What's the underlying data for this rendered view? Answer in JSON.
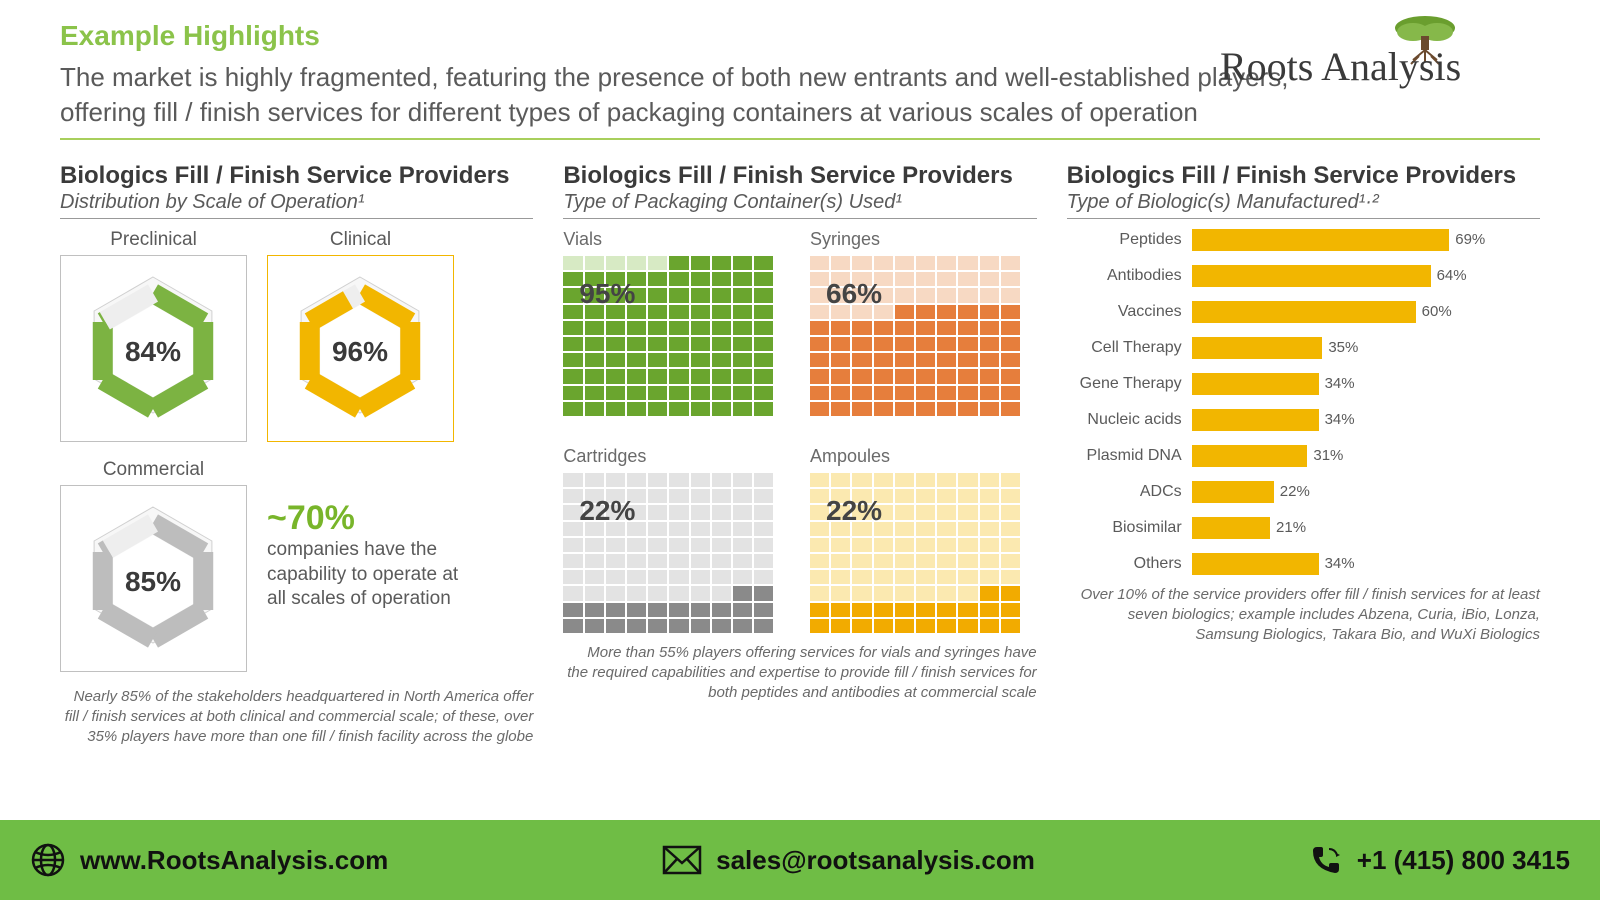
{
  "header": {
    "example_highlights": "Example Highlights",
    "subtitle": "The market is highly fragmented, featuring the presence of both new entrants and well-established players, offering fill / finish services for different types of packaging containers at various scales of operation",
    "logo_text": "Roots Analysis"
  },
  "panel1": {
    "title": "Biologics Fill / Finish Service Providers",
    "subtitle": "Distribution by Scale of Operation¹",
    "hexes": [
      {
        "label": "Preclinical",
        "value": "84%",
        "pct": 84,
        "color": "#7cb342",
        "border": "#c0c0c0"
      },
      {
        "label": "Clinical",
        "value": "96%",
        "pct": 96,
        "color": "#f2b600",
        "border": "#f2b600"
      },
      {
        "label": "Commercial",
        "value": "85%",
        "pct": 85,
        "color": "#bdbdbd",
        "border": "#c0c0c0"
      }
    ],
    "callout_big": "~70%",
    "callout_text": "companies have the capability to operate at all scales of operation",
    "note": "Nearly 85% of the stakeholders headquartered in North America offer fill / finish services at both clinical and commercial scale; of these, over 35% players have more than one fill / finish facility across the globe"
  },
  "panel2": {
    "title": "Biologics Fill / Finish Service Providers",
    "subtitle": "Type of Packaging Container(s) Used¹",
    "waffles": [
      {
        "label": "Vials",
        "pct": 95,
        "value": "95%",
        "dark": "#6aa52e",
        "light": "#d7eac4"
      },
      {
        "label": "Syringes",
        "pct": 66,
        "value": "66%",
        "dark": "#e67e3c",
        "light": "#f7d9c3"
      },
      {
        "label": "Cartridges",
        "pct": 22,
        "value": "22%",
        "dark": "#8a8a8a",
        "light": "#e3e3e3"
      },
      {
        "label": "Ampoules",
        "pct": 22,
        "value": "22%",
        "dark": "#f2ab00",
        "light": "#fbe9b0"
      }
    ],
    "note": "More than 55% players offering services for vials and syringes have the required capabilities and expertise to provide fill / finish services for both peptides and antibodies at commercial scale"
  },
  "panel3": {
    "title": "Biologics Fill / Finish Service Providers",
    "subtitle": "Type of Biologic(s) Manufactured¹·²",
    "bars": [
      {
        "label": "Peptides",
        "pct": 69,
        "value": "69%"
      },
      {
        "label": "Antibodies",
        "pct": 64,
        "value": "64%"
      },
      {
        "label": "Vaccines",
        "pct": 60,
        "value": "60%"
      },
      {
        "label": "Cell Therapy",
        "pct": 35,
        "value": "35%"
      },
      {
        "label": "Gene Therapy",
        "pct": 34,
        "value": "34%"
      },
      {
        "label": "Nucleic acids",
        "pct": 34,
        "value": "34%"
      },
      {
        "label": "Plasmid DNA",
        "pct": 31,
        "value": "31%"
      },
      {
        "label": "ADCs",
        "pct": 22,
        "value": "22%"
      },
      {
        "label": "Biosimilar",
        "pct": 21,
        "value": "21%"
      },
      {
        "label": "Others",
        "pct": 34,
        "value": "34%"
      }
    ],
    "bar_color": "#f2b600",
    "max_pct": 75,
    "note": "Over 10% of the service providers offer fill / finish services for at least seven biologics; example includes Abzena, Curia, iBio, Lonza, Samsung Biologics, Takara Bio, and WuXi Biologics"
  },
  "footer": {
    "website": "www.RootsAnalysis.com",
    "email": "sales@rootsanalysis.com",
    "phone": "+1 (415) 800 3415",
    "bg_color": "#6fbd45"
  }
}
